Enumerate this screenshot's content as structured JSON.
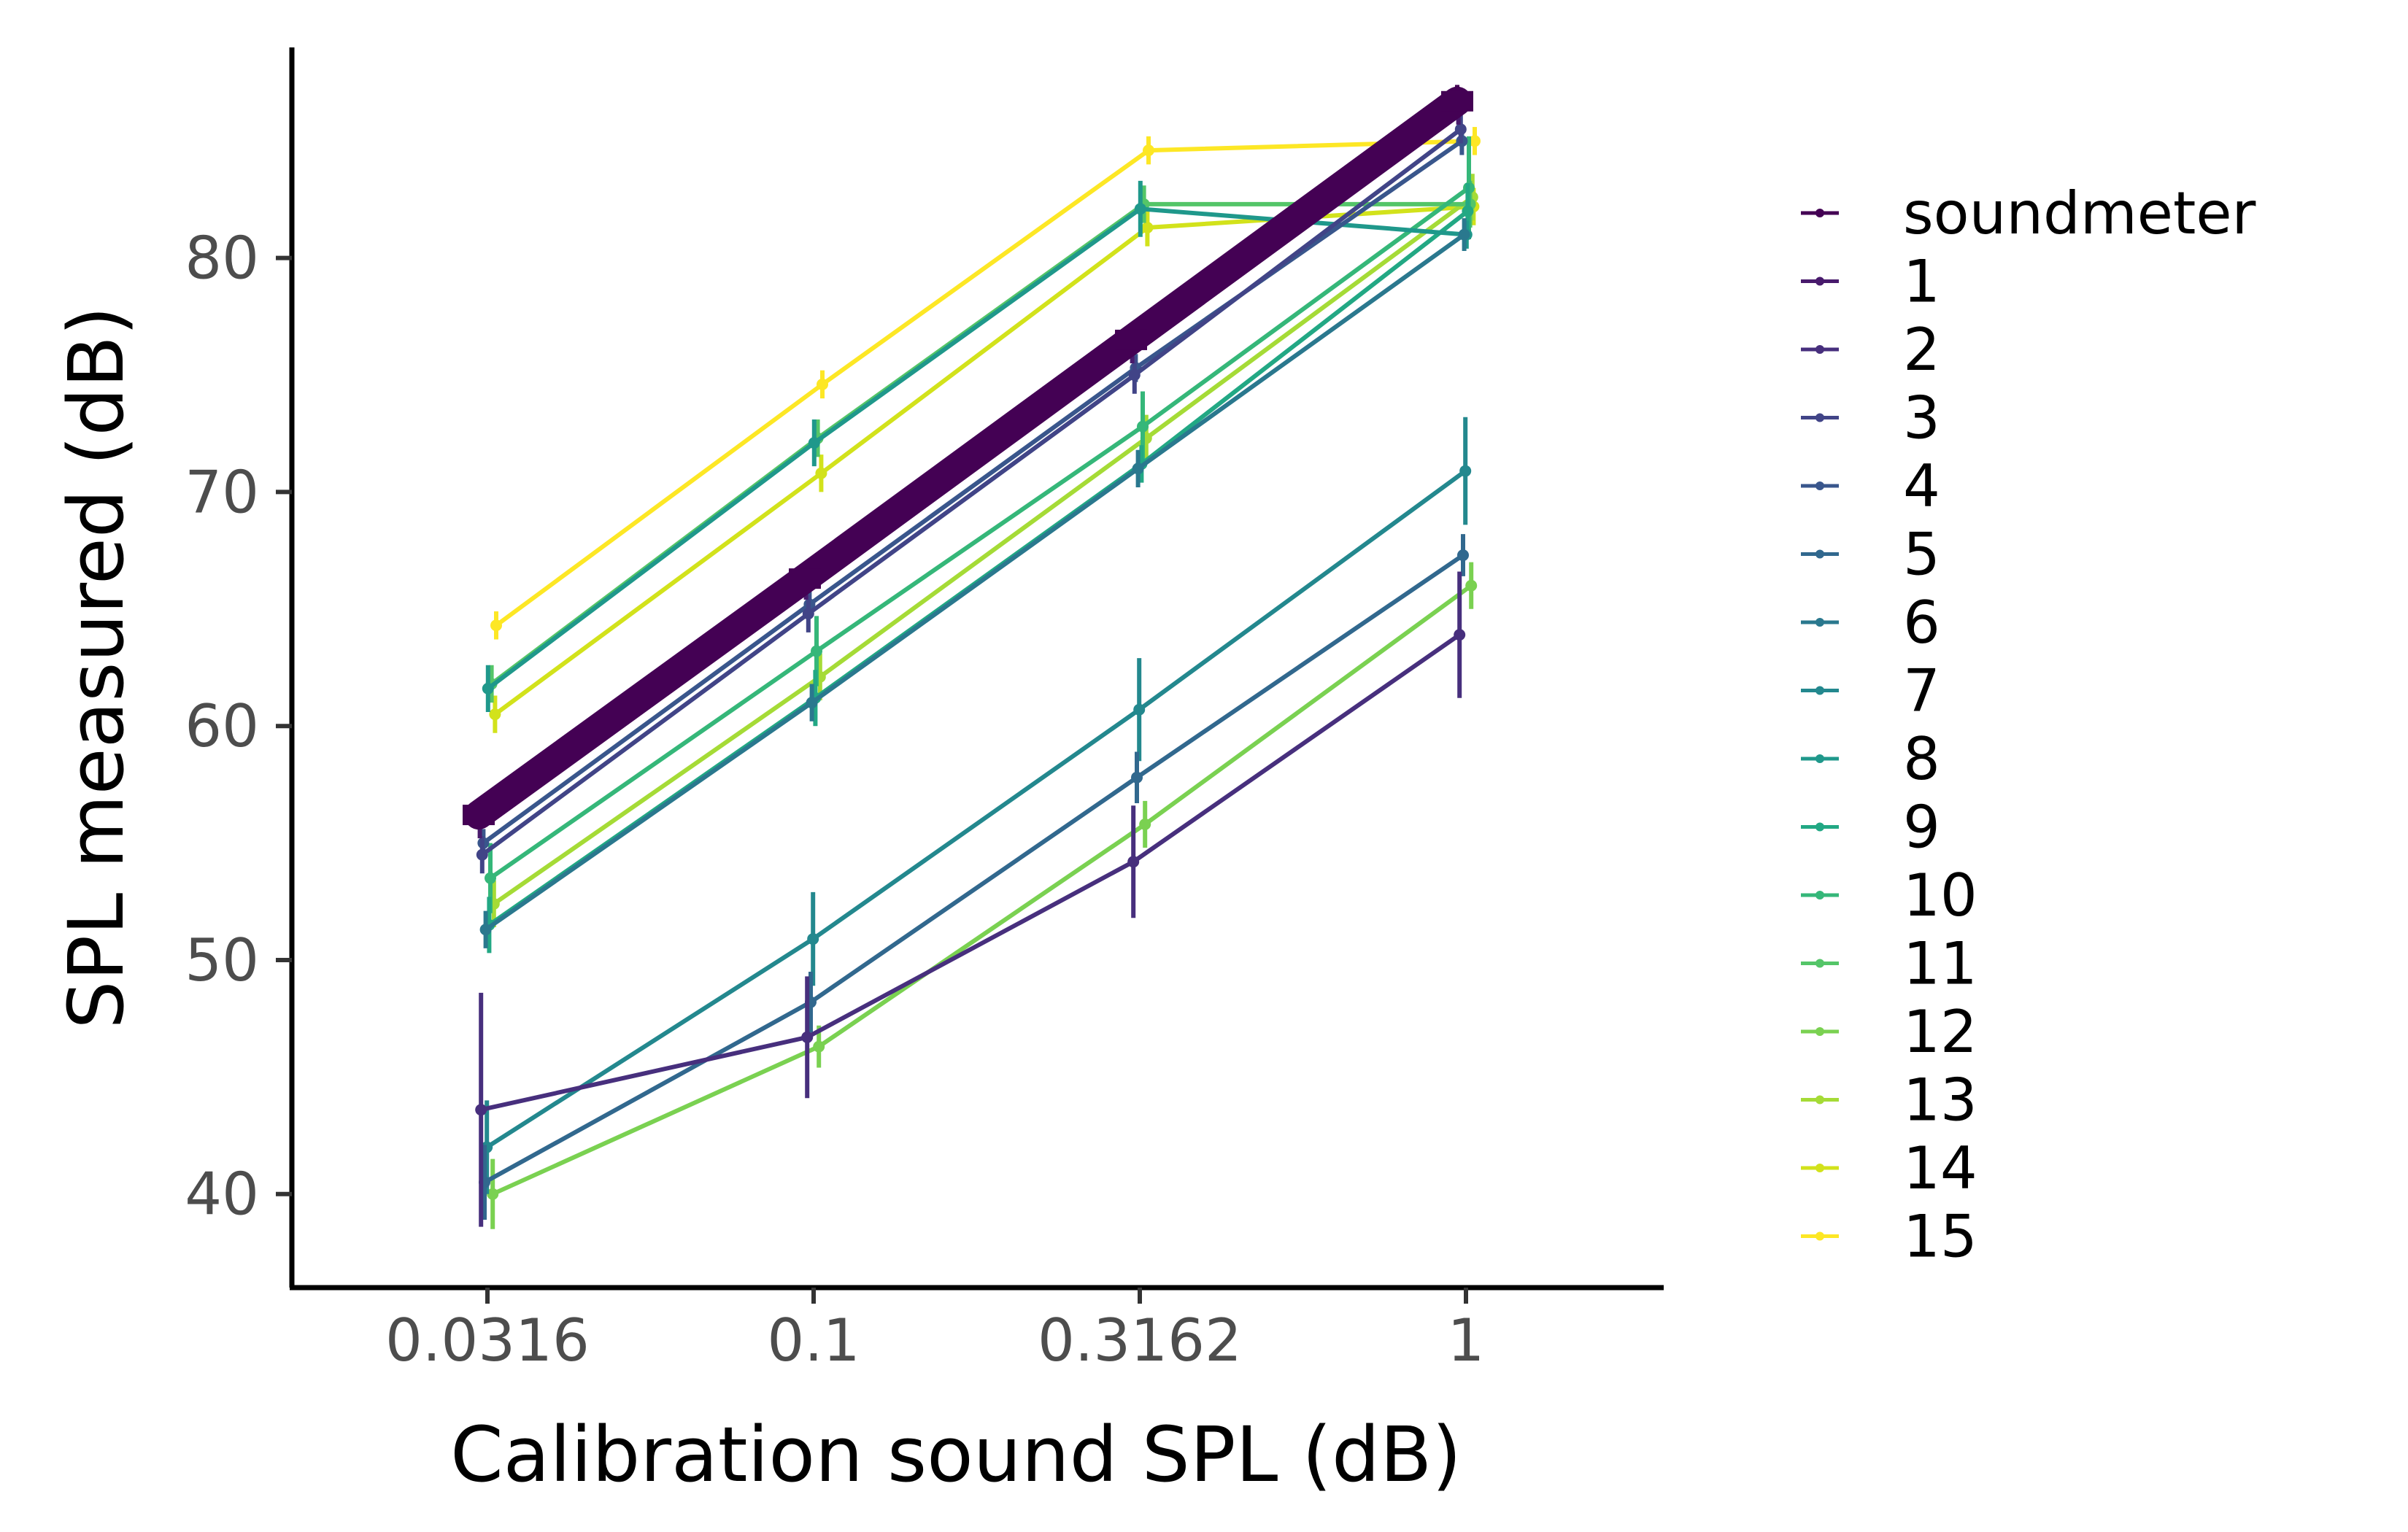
{
  "chart_data": {
    "type": "line",
    "title": "",
    "xlabel": "Calibration sound SPL (dB)",
    "ylabel": "SPL measured (dB)",
    "x_ticks": [
      "0.0316",
      "0.1",
      "0.3162",
      "1"
    ],
    "y_ticks": [
      40,
      50,
      60,
      70,
      80
    ],
    "ylim": [
      36,
      89
    ],
    "x": [
      0.0316,
      0.1,
      0.3162,
      1
    ],
    "grid": false,
    "legend_position": "right",
    "series": [
      {
        "name": "soundmeter",
        "color": "#440154",
        "values": [
          56.2,
          66.3,
          76.5,
          86.7
        ],
        "errors": [
          0.5,
          0.5,
          0.5,
          0.7
        ]
      },
      {
        "name": "1",
        "color": "#481a6c",
        "values": [
          56.0,
          66.2,
          76.3,
          86.5
        ],
        "errors": [
          0.8,
          0.8,
          0.8,
          0.8
        ]
      },
      {
        "name": "2",
        "color": "#472f7d",
        "values": [
          43.6,
          46.7,
          54.2,
          63.9
        ],
        "errors": [
          5.0,
          2.6,
          2.4,
          2.7
        ]
      },
      {
        "name": "3",
        "color": "#414487",
        "values": [
          54.5,
          64.8,
          75.0,
          85.5
        ],
        "errors": [
          0.8,
          0.8,
          0.8,
          0.6
        ]
      },
      {
        "name": "4",
        "color": "#39568c",
        "values": [
          55.0,
          65.2,
          75.3,
          85.0
        ],
        "errors": [
          0.6,
          0.6,
          0.6,
          0.6
        ]
      },
      {
        "name": "5",
        "color": "#31688e",
        "values": [
          40.5,
          48.2,
          57.8,
          67.3
        ],
        "errors": [
          1.6,
          1.3,
          1.1,
          0.9
        ]
      },
      {
        "name": "6",
        "color": "#2a788e",
        "values": [
          51.3,
          61.0,
          71.0,
          81.0
        ],
        "errors": [
          0.8,
          0.8,
          0.8,
          0.7
        ]
      },
      {
        "name": "7",
        "color": "#23888e",
        "values": [
          42.0,
          50.9,
          60.7,
          70.9
        ],
        "errors": [
          2.0,
          2.0,
          2.2,
          2.3
        ]
      },
      {
        "name": "8",
        "color": "#1f988b",
        "values": [
          61.6,
          72.1,
          82.1,
          81.0
        ],
        "errors": [
          1.0,
          1.0,
          1.2,
          0.6
        ]
      },
      {
        "name": "9",
        "color": "#22a884",
        "values": [
          51.5,
          61.2,
          71.2,
          82.0
        ],
        "errors": [
          1.2,
          1.2,
          0.8,
          1.2
        ]
      },
      {
        "name": "10",
        "color": "#35b779",
        "values": [
          53.5,
          63.2,
          72.8,
          83.0
        ],
        "errors": [
          1.5,
          1.5,
          1.5,
          2.2
        ]
      },
      {
        "name": "11",
        "color": "#54c568",
        "values": [
          61.8,
          72.3,
          82.3,
          82.3
        ],
        "errors": [
          0.8,
          0.8,
          0.8,
          1.0
        ]
      },
      {
        "name": "12",
        "color": "#7ad151",
        "values": [
          40.0,
          46.3,
          55.8,
          66.0
        ],
        "errors": [
          1.5,
          0.9,
          1.0,
          1.0
        ]
      },
      {
        "name": "13",
        "color": "#a5db36",
        "values": [
          52.4,
          62.1,
          72.3,
          82.6
        ],
        "errors": [
          1.0,
          1.0,
          1.0,
          1.0
        ]
      },
      {
        "name": "14",
        "color": "#d2e21b",
        "values": [
          60.5,
          70.8,
          81.3,
          82.2
        ],
        "errors": [
          0.8,
          0.8,
          0.8,
          0.8
        ]
      },
      {
        "name": "15",
        "color": "#fde725",
        "values": [
          64.3,
          74.6,
          84.6,
          85.0
        ],
        "errors": [
          0.6,
          0.6,
          0.6,
          0.6
        ]
      }
    ]
  }
}
